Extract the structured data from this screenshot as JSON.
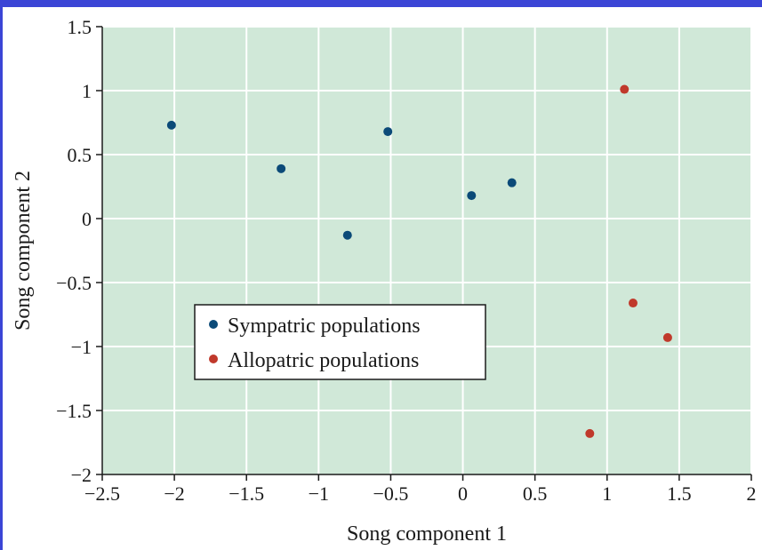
{
  "chart_data": {
    "type": "scatter",
    "title": "",
    "xlabel": "Song component 1",
    "ylabel": "Song component 2",
    "xlim": [
      -2.5,
      2
    ],
    "ylim": [
      -2,
      1.5
    ],
    "xticks": [
      -2.5,
      -2,
      -1.5,
      -1,
      -0.5,
      0,
      0.5,
      1,
      1.5,
      2
    ],
    "yticks": [
      -2,
      -1.5,
      -1,
      -0.5,
      0,
      0.5,
      1,
      1.5
    ],
    "xtick_labels": [
      "−2.5",
      "−2",
      "−1.5",
      "−1",
      "−0.5",
      "0",
      "0.5",
      "1",
      "1.5",
      "2"
    ],
    "ytick_labels": [
      "−2",
      "−1.5",
      "−1",
      "−0.5",
      "0",
      "0.5",
      "1",
      "1.5"
    ],
    "grid": true,
    "background_color": "#d0e8d8",
    "legend_position": "center-left",
    "series": [
      {
        "name": "Sympatric populations",
        "color": "#0b4a78",
        "points": [
          {
            "x": -2.02,
            "y": 0.73
          },
          {
            "x": -1.26,
            "y": 0.39
          },
          {
            "x": -0.8,
            "y": -0.13
          },
          {
            "x": -0.52,
            "y": 0.68
          },
          {
            "x": 0.06,
            "y": 0.18
          },
          {
            "x": 0.34,
            "y": 0.28
          }
        ]
      },
      {
        "name": "Allopatric populations",
        "color": "#c0392b",
        "points": [
          {
            "x": 1.12,
            "y": 1.01
          },
          {
            "x": 1.18,
            "y": -0.66
          },
          {
            "x": 1.42,
            "y": -0.93
          },
          {
            "x": 0.88,
            "y": -1.68
          }
        ]
      }
    ]
  }
}
